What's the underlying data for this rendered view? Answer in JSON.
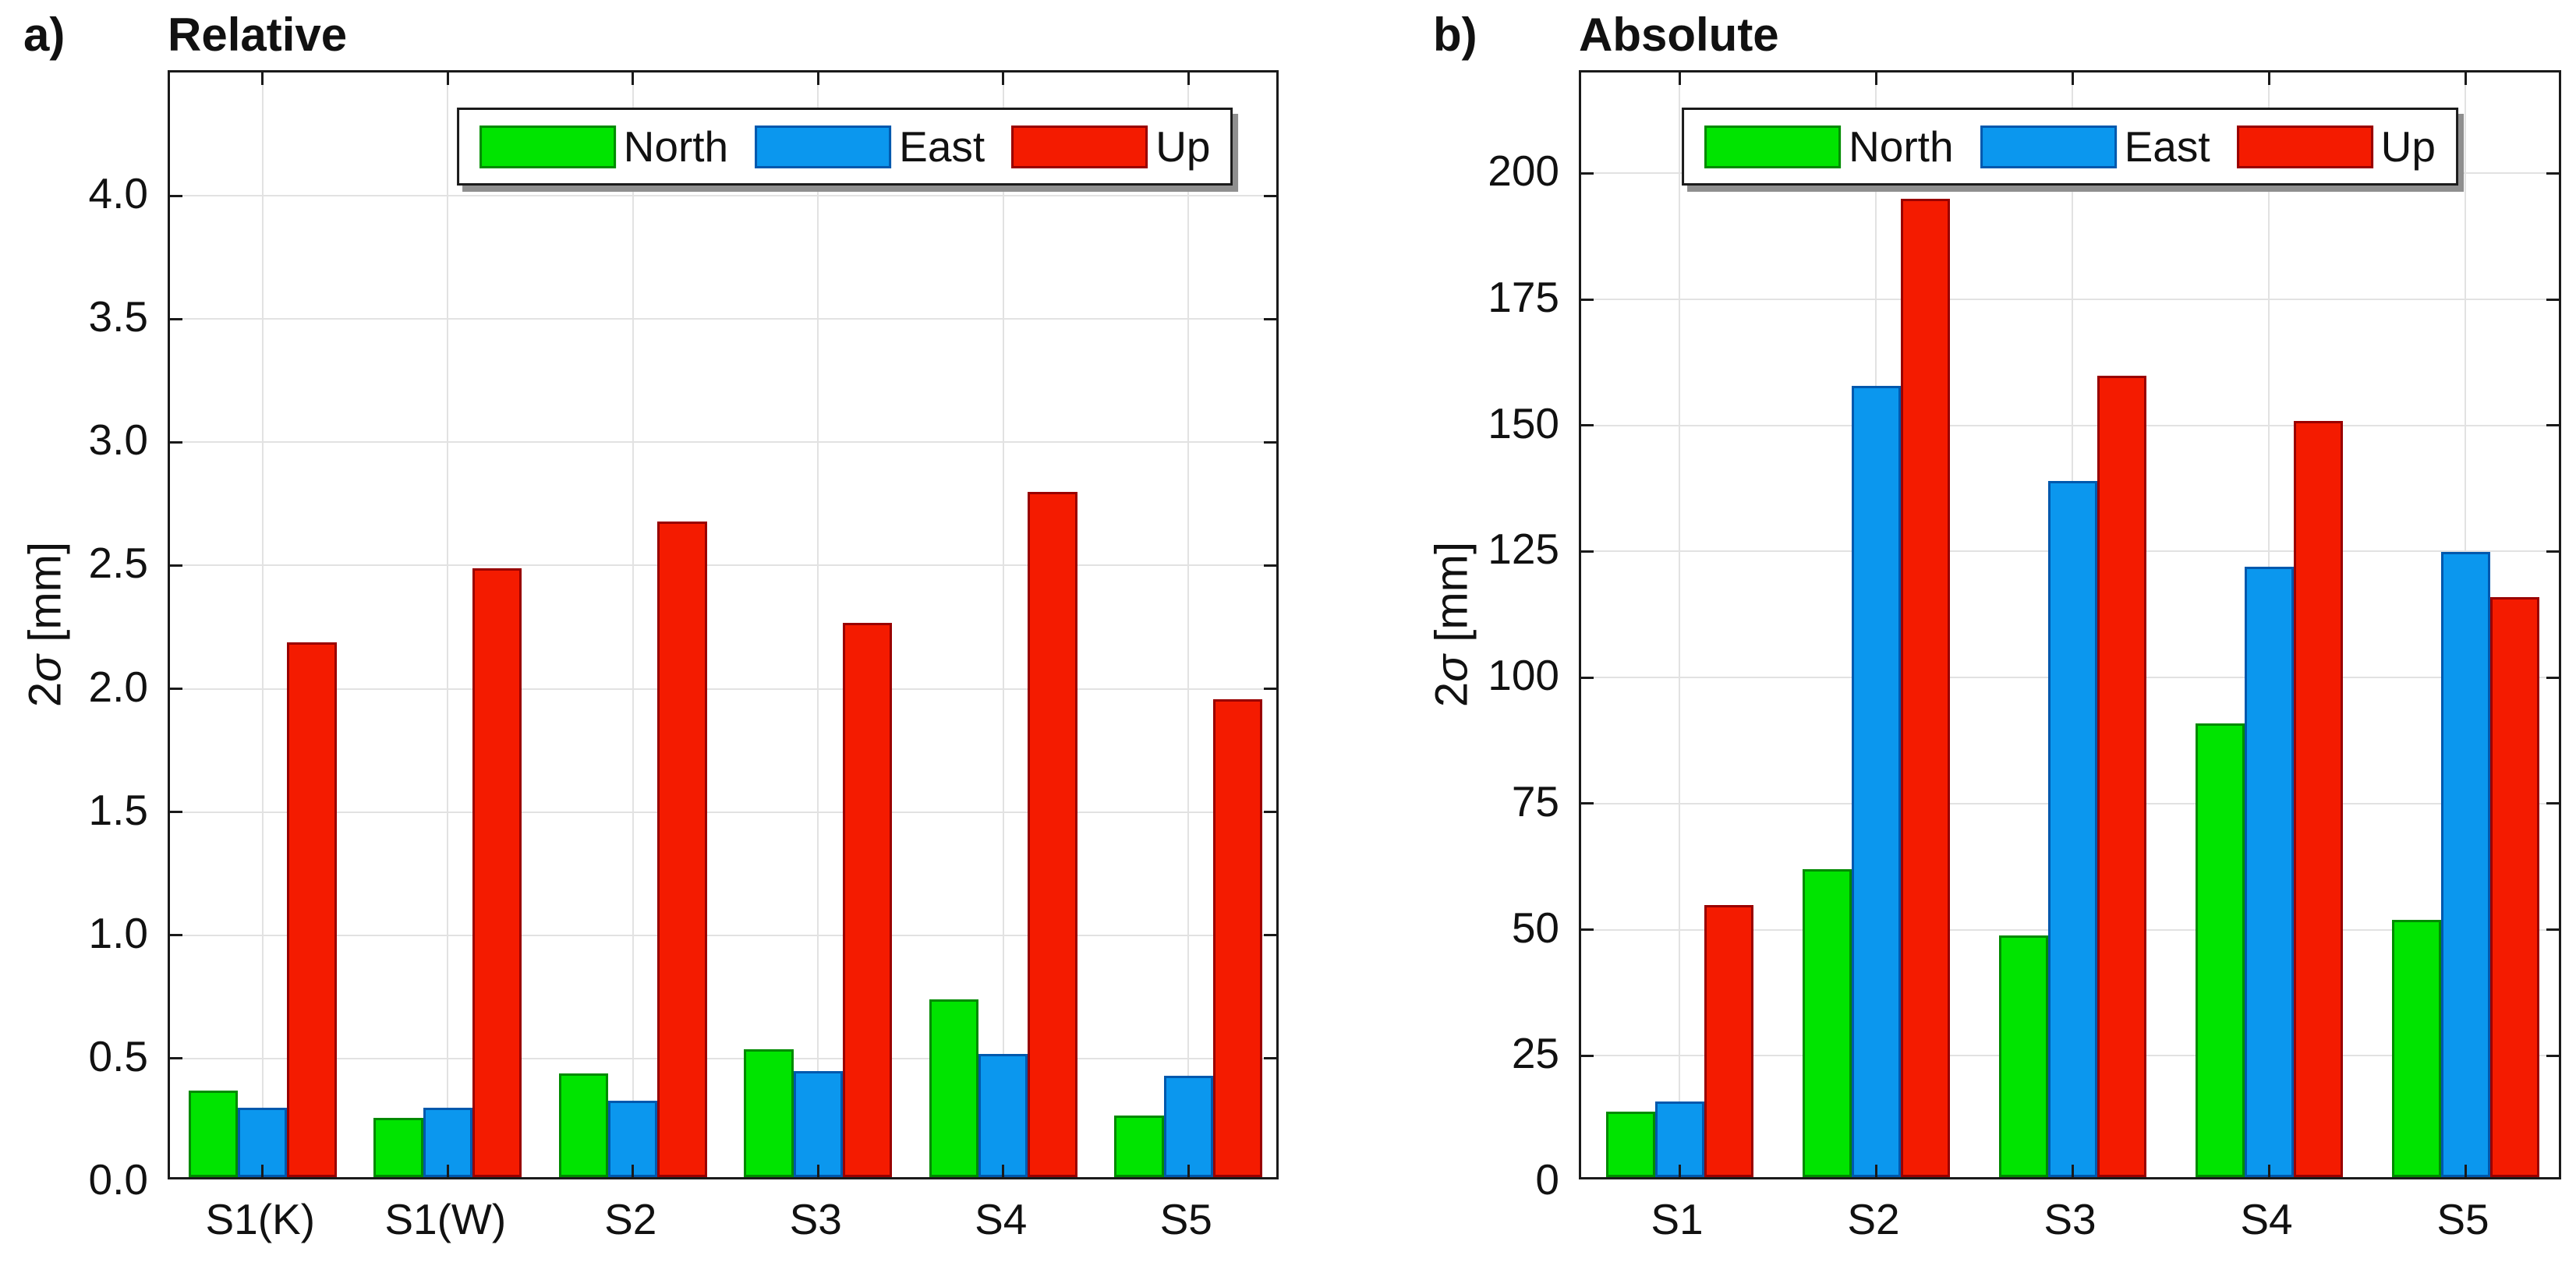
{
  "figure": {
    "background": "#ffffff",
    "grid_color": "#e2e2e2",
    "axis_color": "#1a1a1a"
  },
  "colors": {
    "north": {
      "fill": "#00E400",
      "edge": "#008A00"
    },
    "east": {
      "fill": "#0B97EE",
      "edge": "#0058AD"
    },
    "up": {
      "fill": "#F41B00",
      "edge": "#990000"
    }
  },
  "chart_data": [
    {
      "type": "bar",
      "panel_label": "a)",
      "title": "Relative",
      "xlabel": "",
      "ylabel": "2σ [mm]",
      "ylabel_parts": {
        "pre": "2",
        "sigma": "σ",
        "post": " [mm]"
      },
      "categories": [
        "S1(K)",
        "S1(W)",
        "S2",
        "S3",
        "S4",
        "S5"
      ],
      "series": [
        {
          "name": "North",
          "color_key": "north",
          "values": [
            0.35,
            0.24,
            0.42,
            0.52,
            0.72,
            0.25
          ]
        },
        {
          "name": "East",
          "color_key": "east",
          "values": [
            0.28,
            0.28,
            0.31,
            0.43,
            0.5,
            0.41
          ]
        },
        {
          "name": "Up",
          "color_key": "up",
          "values": [
            2.17,
            2.47,
            2.66,
            2.25,
            2.78,
            1.94
          ]
        }
      ],
      "ylim": [
        0,
        4.5
      ],
      "yticks": [
        0,
        0.5,
        1,
        1.5,
        2,
        2.5,
        3,
        3.5,
        4
      ],
      "ytick_labels": [
        "0.0",
        "0.5",
        "1.0",
        "1.5",
        "2.0",
        "2.5",
        "3.0",
        "3.5",
        "4.0"
      ],
      "grid": true,
      "legend_position": "top-center-right",
      "legend_center_pct": 61,
      "bar_width_pct": 4.45
    },
    {
      "type": "bar",
      "panel_label": "b)",
      "title": "Absolute",
      "xlabel": "",
      "ylabel": "2σ [mm]",
      "ylabel_parts": {
        "pre": "2",
        "sigma": "σ",
        "post": " [mm]"
      },
      "categories": [
        "S1",
        "S2",
        "S3",
        "S4",
        "S5"
      ],
      "series": [
        {
          "name": "North",
          "color_key": "north",
          "values": [
            13,
            61,
            48,
            90,
            51
          ]
        },
        {
          "name": "East",
          "color_key": "east",
          "values": [
            15,
            157,
            138,
            121,
            124
          ]
        },
        {
          "name": "Up",
          "color_key": "up",
          "values": [
            54,
            194,
            159,
            150,
            115
          ]
        }
      ],
      "ylim": [
        0,
        220
      ],
      "yticks": [
        0,
        25,
        50,
        75,
        100,
        125,
        150,
        175,
        200
      ],
      "ytick_labels": [
        "0",
        "25",
        "50",
        "75",
        "100",
        "125",
        "150",
        "175",
        "200"
      ],
      "grid": true,
      "legend_position": "top-center",
      "legend_center_pct": 50,
      "bar_width_pct": 5.0
    }
  ]
}
